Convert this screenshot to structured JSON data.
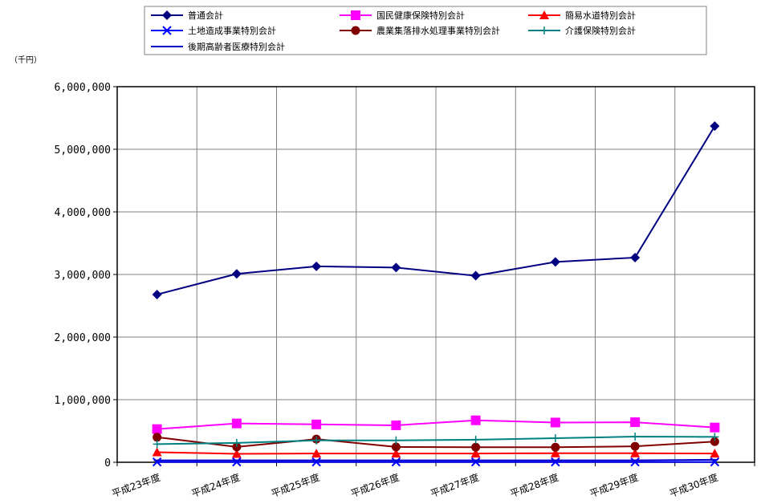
{
  "chart_data": {
    "type": "line",
    "title": "",
    "unit_label": "（千円）",
    "xlabel": "",
    "ylabel": "",
    "ylim": [
      0,
      6000000
    ],
    "yticks": [
      0,
      1000000,
      2000000,
      3000000,
      4000000,
      5000000,
      6000000
    ],
    "ytick_labels": [
      "0",
      "1,000,000",
      "2,000,000",
      "3,000,000",
      "4,000,000",
      "5,000,000",
      "6,000,000"
    ],
    "grid": true,
    "legend_position": "top",
    "categories": [
      "平成23年度",
      "平成24年度",
      "平成25年度",
      "平成26年度",
      "平成27年度",
      "平成28年度",
      "平成29年度",
      "平成30年度"
    ],
    "series": [
      {
        "name": "普通会計",
        "color": "#000080",
        "marker": "diamond",
        "values": [
          2680000,
          3010000,
          3130000,
          3110000,
          2980000,
          3200000,
          3270000,
          5370000
        ]
      },
      {
        "name": "国民健康保険特別会計",
        "color": "#ff00ff",
        "marker": "square",
        "values": [
          530000,
          620000,
          605000,
          590000,
          670000,
          635000,
          640000,
          555000
        ]
      },
      {
        "name": "簡易水道特別会計",
        "color": "#ff0000",
        "marker": "triangle",
        "values": [
          160000,
          135000,
          140000,
          140000,
          140000,
          145000,
          145000,
          140000
        ]
      },
      {
        "name": "土地造成事業特別会計",
        "color": "#0000ff",
        "marker": "x",
        "values": [
          5000,
          5000,
          5000,
          5000,
          5000,
          5000,
          5000,
          5000
        ]
      },
      {
        "name": "農業集落排水処理事業特別会計",
        "color": "#800000",
        "marker": "circle",
        "values": [
          400000,
          245000,
          370000,
          245000,
          240000,
          240000,
          255000,
          330000
        ]
      },
      {
        "name": "介護保険特別会計",
        "color": "#008080",
        "marker": "plus",
        "values": [
          290000,
          310000,
          350000,
          350000,
          360000,
          385000,
          410000,
          405000
        ]
      },
      {
        "name": "後期高齢者医療特別会計",
        "color": "#0000cd",
        "marker": "dash",
        "values": [
          30000,
          30000,
          30000,
          30000,
          30000,
          30000,
          30000,
          40000
        ]
      }
    ]
  }
}
